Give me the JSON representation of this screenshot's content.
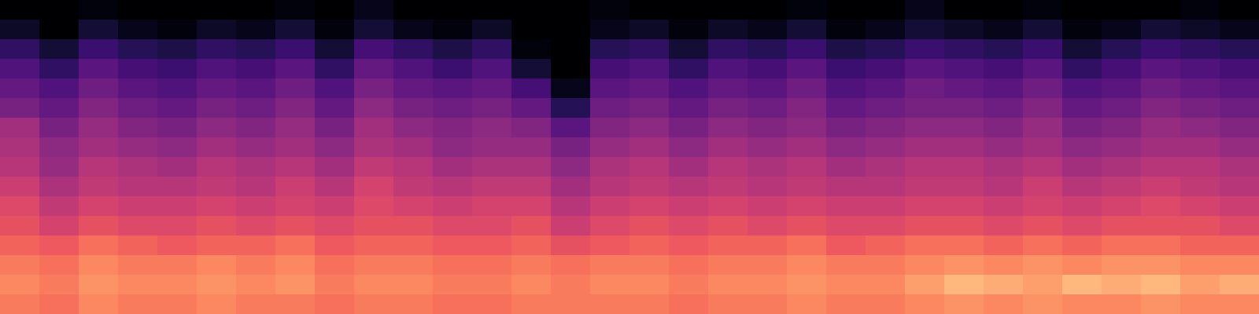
{
  "chart_data": {
    "type": "heatmap",
    "color": "magma",
    "tick_labels": false,
    "zlim": [
      -80,
      0
    ],
    "cells": [
      [
        -80,
        -80,
        -78,
        -80,
        -80,
        -80,
        -80,
        -78,
        -80,
        -76,
        -80,
        -80,
        -80,
        -80,
        -80,
        -78,
        -80,
        -80,
        -80,
        -80,
        -78,
        -80,
        -80,
        -76,
        -80,
        -80,
        -78,
        -80,
        -80,
        -80,
        -78,
        -80
      ],
      [
        -74,
        -80,
        -72,
        -76,
        -78,
        -74,
        -76,
        -72,
        -78,
        -72,
        -76,
        -78,
        -74,
        -80,
        -80,
        -76,
        -74,
        -78,
        -74,
        -76,
        -72,
        -78,
        -76,
        -72,
        -74,
        -76,
        -72,
        -78,
        -76,
        -72,
        -74,
        -76
      ],
      [
        -66,
        -72,
        -64,
        -68,
        -70,
        -66,
        -68,
        -64,
        -72,
        -62,
        -66,
        -70,
        -66,
        -78,
        -80,
        -68,
        -66,
        -72,
        -66,
        -68,
        -64,
        -70,
        -68,
        -64,
        -66,
        -68,
        -64,
        -72,
        -68,
        -64,
        -66,
        -68
      ],
      [
        -60,
        -66,
        -58,
        -62,
        -64,
        -60,
        -62,
        -58,
        -66,
        -56,
        -60,
        -64,
        -60,
        -72,
        -80,
        -62,
        -60,
        -66,
        -60,
        -62,
        -58,
        -64,
        -62,
        -58,
        -60,
        -62,
        -58,
        -66,
        -62,
        -58,
        -60,
        -62
      ],
      [
        -56,
        -60,
        -54,
        -58,
        -60,
        -56,
        -58,
        -54,
        -60,
        -52,
        -56,
        -58,
        -56,
        -62,
        -76,
        -58,
        -56,
        -60,
        -56,
        -58,
        -54,
        -60,
        -58,
        -54,
        -56,
        -58,
        -54,
        -60,
        -58,
        -54,
        -56,
        -58
      ],
      [
        -52,
        -56,
        -50,
        -54,
        -56,
        -52,
        -54,
        -50,
        -56,
        -48,
        -52,
        -54,
        -52,
        -56,
        -68,
        -54,
        -52,
        -56,
        -52,
        -54,
        -50,
        -56,
        -54,
        -52,
        -52,
        -54,
        -50,
        -56,
        -54,
        -50,
        -52,
        -54
      ],
      [
        -44,
        -52,
        -46,
        -50,
        -52,
        -48,
        -50,
        -46,
        -52,
        -44,
        -48,
        -50,
        -48,
        -50,
        -58,
        -50,
        -48,
        -52,
        -48,
        -50,
        -48,
        -52,
        -50,
        -48,
        -48,
        -50,
        -46,
        -52,
        -50,
        -46,
        -48,
        -50
      ],
      [
        -42,
        -48,
        -44,
        -46,
        -48,
        -44,
        -46,
        -44,
        -48,
        -42,
        -44,
        -48,
        -46,
        -46,
        -52,
        -46,
        -44,
        -48,
        -44,
        -46,
        -44,
        -48,
        -46,
        -44,
        -44,
        -46,
        -44,
        -48,
        -46,
        -44,
        -44,
        -46
      ],
      [
        -40,
        -46,
        -40,
        -42,
        -44,
        -40,
        -42,
        -40,
        -44,
        -38,
        -40,
        -44,
        -42,
        -42,
        -48,
        -42,
        -40,
        -44,
        -40,
        -42,
        -40,
        -44,
        -42,
        -40,
        -40,
        -42,
        -40,
        -44,
        -42,
        -40,
        -40,
        -42
      ],
      [
        -36,
        -42,
        -38,
        -40,
        -40,
        -38,
        -40,
        -36,
        -40,
        -34,
        -38,
        -40,
        -38,
        -38,
        -44,
        -40,
        -38,
        -40,
        -38,
        -40,
        -38,
        -40,
        -40,
        -38,
        -38,
        -40,
        -36,
        -40,
        -38,
        -36,
        -38,
        -40
      ],
      [
        -32,
        -38,
        -34,
        -36,
        -36,
        -34,
        -36,
        -34,
        -36,
        -32,
        -34,
        -36,
        -34,
        -34,
        -40,
        -36,
        -34,
        -36,
        -34,
        -36,
        -34,
        -36,
        -36,
        -34,
        -34,
        -36,
        -34,
        -36,
        -34,
        -32,
        -34,
        -36
      ],
      [
        -30,
        -34,
        -30,
        -32,
        -32,
        -30,
        -32,
        -30,
        -32,
        -30,
        -30,
        -32,
        -32,
        -30,
        -36,
        -32,
        -30,
        -32,
        -30,
        -32,
        -30,
        -32,
        -32,
        -30,
        -30,
        -32,
        -30,
        -32,
        -30,
        -30,
        -30,
        -32
      ],
      [
        -26,
        -28,
        -24,
        -26,
        -28,
        -26,
        -26,
        -24,
        -28,
        -26,
        -26,
        -28,
        -28,
        -26,
        -30,
        -28,
        -26,
        -28,
        -26,
        -26,
        -24,
        -28,
        -26,
        -24,
        -24,
        -26,
        -24,
        -26,
        -24,
        -24,
        -26,
        -26
      ],
      [
        -22,
        -24,
        -20,
        -22,
        -22,
        -20,
        -22,
        -20,
        -24,
        -22,
        -22,
        -24,
        -24,
        -22,
        -24,
        -22,
        -22,
        -24,
        -22,
        -22,
        -20,
        -22,
        -22,
        -20,
        -18,
        -20,
        -18,
        -20,
        -18,
        -18,
        -20,
        -20
      ],
      [
        -20,
        -22,
        -18,
        -20,
        -20,
        -18,
        -20,
        -18,
        -22,
        -20,
        -20,
        -22,
        -22,
        -20,
        -22,
        -20,
        -20,
        -22,
        -20,
        -20,
        -18,
        -20,
        -20,
        -16,
        -12,
        -14,
        -16,
        -12,
        -14,
        -12,
        -16,
        -14
      ],
      [
        -22,
        -24,
        -20,
        -22,
        -22,
        -20,
        -22,
        -22,
        -24,
        -22,
        -22,
        -24,
        -24,
        -22,
        -22,
        -22,
        -22,
        -24,
        -22,
        -22,
        -20,
        -22,
        -22,
        -20,
        -18,
        -20,
        -18,
        -20,
        -20,
        -18,
        -20,
        -20
      ]
    ]
  }
}
